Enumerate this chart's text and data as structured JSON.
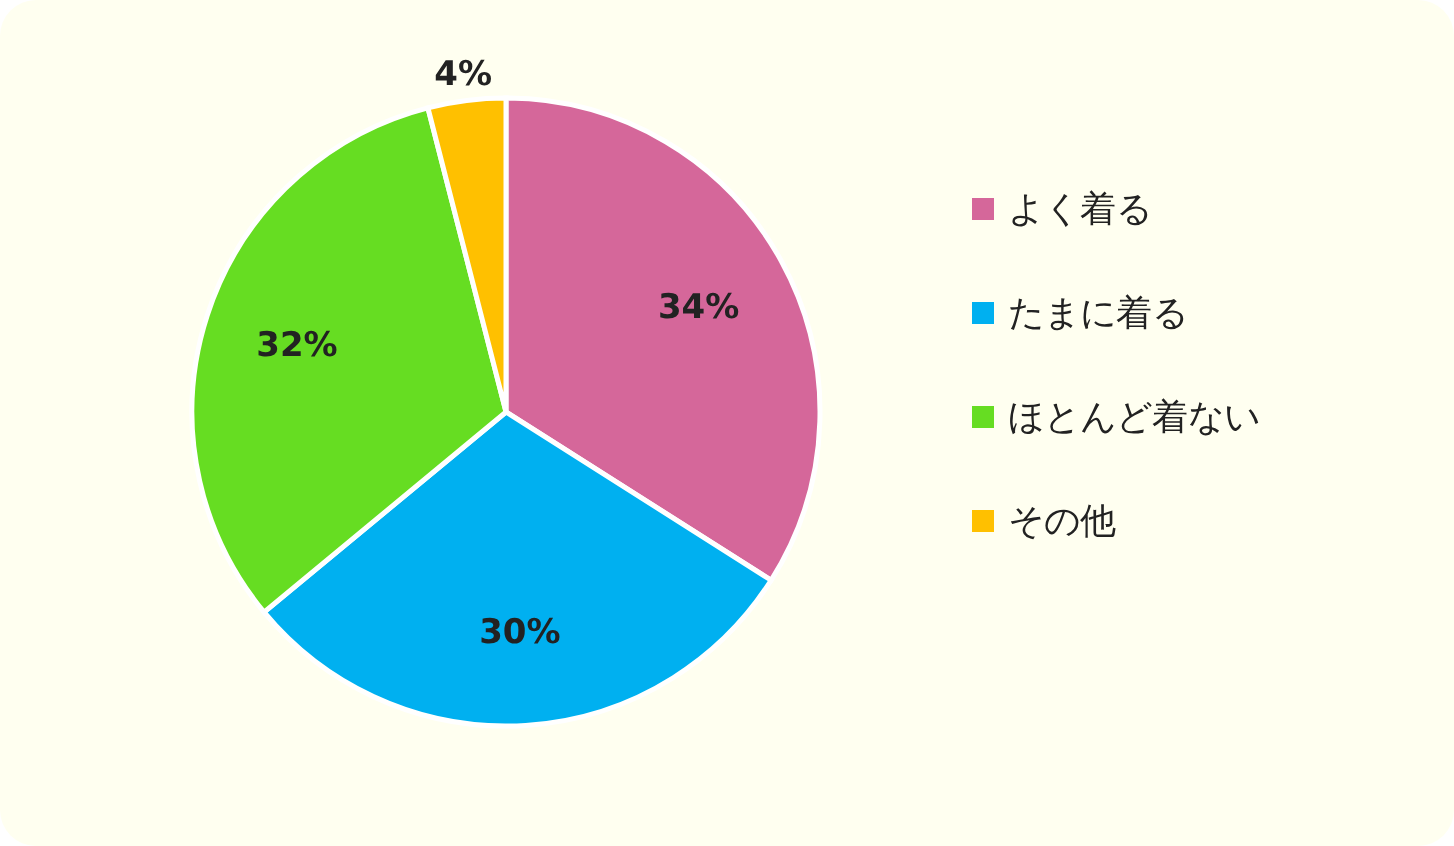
{
  "chart_data": {
    "type": "pie",
    "categories": [
      "よく着る",
      "たまに着る",
      "ほとんど着ない",
      "その他"
    ],
    "values": [
      34,
      30,
      32,
      4
    ],
    "colors": [
      "#d5679a",
      "#00b0f0",
      "#66dd22",
      "#ffc000"
    ],
    "value_labels": [
      "34%",
      "30%",
      "32%",
      "4%"
    ],
    "legend": "right"
  }
}
